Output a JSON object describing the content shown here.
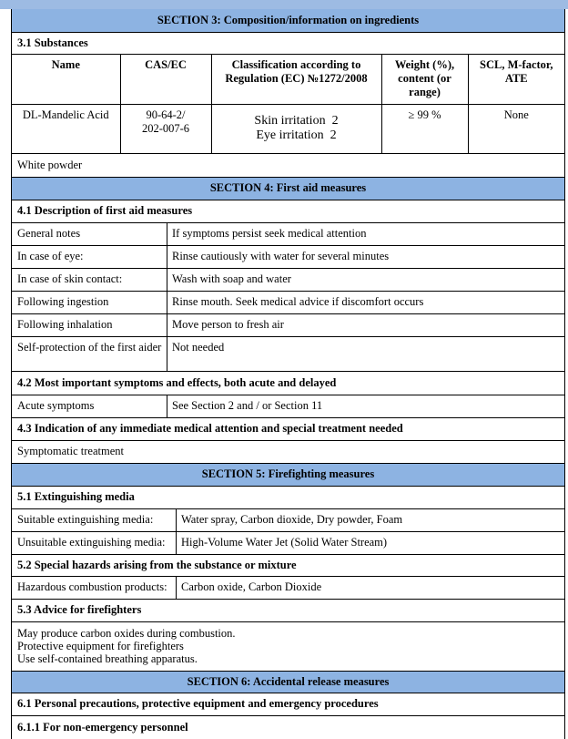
{
  "section3": {
    "title": "SECTION 3: Composition/information on ingredients",
    "sub1": "3.1 Substances",
    "columns": [
      "Name",
      "CAS/EC",
      "Classification according to Regulation (EC) №1272/2008",
      "Weight (%), content (or range)",
      "SCL, M-factor, ATE"
    ],
    "row": {
      "name": "DL-Mandelic Acid",
      "cas": "90-64-2/",
      "ec": "202-007-6",
      "class1": "Skin irritation  2",
      "class2": "Eye irritation  2",
      "weight": "≥ 99 %",
      "scl": "None"
    },
    "note": "White powder"
  },
  "section4": {
    "title": "SECTION 4: First aid measures",
    "sub1": "4.1 Description of first aid measures",
    "items": [
      {
        "k": "General notes",
        "v": "If symptoms persist seek medical attention"
      },
      {
        "k": "In case of eye:",
        "v": "Rinse cautiously with water for several minutes"
      },
      {
        "k": "In case of skin contact:",
        "v": "Wash with soap and water"
      },
      {
        "k": "Following ingestion",
        "v": "Rinse mouth. Seek medical advice if discomfort occurs"
      },
      {
        "k": "Following inhalation",
        "v": "Move person to fresh air"
      },
      {
        "k": "Self-protection of the first aider",
        "v": "Not needed"
      }
    ],
    "sub2": "4.2 Most important symptoms and effects, both acute and delayed",
    "acute": {
      "k": "Acute symptoms",
      "v": "See Section 2 and / or Section 11"
    },
    "sub3": "4.3 Indication of any immediate medical attention and special treatment needed",
    "treatment": "Symptomatic treatment"
  },
  "section5": {
    "title": "SECTION 5: Firefighting measures",
    "sub1": "5.1 Extinguishing media",
    "suitable": {
      "k": "Suitable extinguishing media:",
      "v": "Water spray, Carbon dioxide, Dry powder, Foam"
    },
    "unsuitable": {
      "k": "Unsuitable extinguishing media:",
      "v": "High-Volume Water Jet (Solid Water Stream)"
    },
    "sub2": "5.2 Special hazards arising from the substance or mixture",
    "hazardous": {
      "k": "Hazardous combustion products:",
      "v": "Carbon oxide, Carbon Dioxide"
    },
    "sub3": "5.3 Advice for firefighters",
    "advice": [
      "May produce carbon oxides during combustion.",
      "Protective equipment for firefighters",
      "Use self-contained breathing apparatus."
    ]
  },
  "section6": {
    "title": "SECTION 6: Accidental release measures",
    "sub1": "6.1 Personal precautions, protective equipment and emergency procedures",
    "sub11": "6.1.1 For non-emergency personnel"
  }
}
